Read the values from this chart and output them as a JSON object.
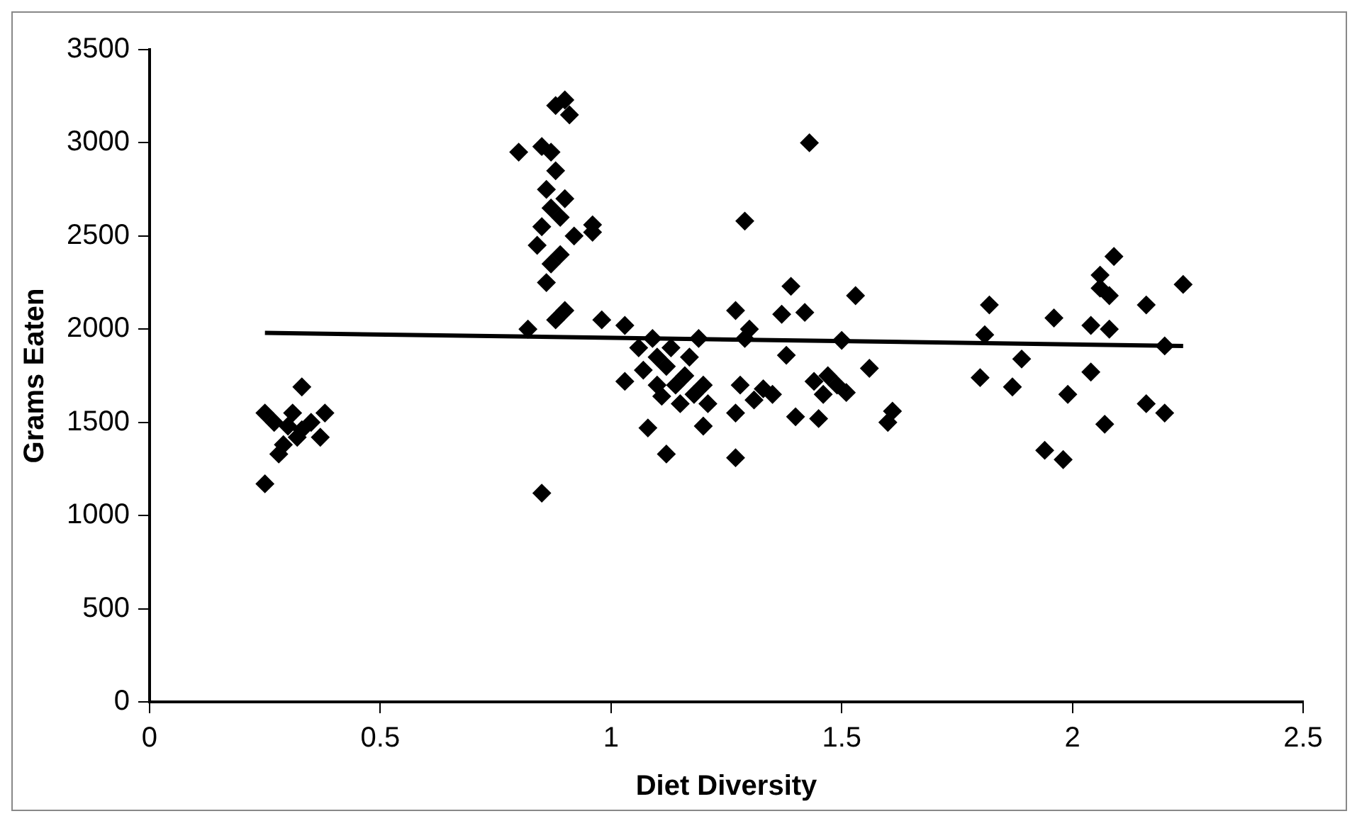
{
  "chart_data": {
    "type": "scatter",
    "xlabel": "Diet Diversity",
    "ylabel": "Grams Eaten",
    "xlim": [
      0,
      2.5
    ],
    "xticks": [
      0,
      0.5,
      1,
      1.5,
      2,
      2.5
    ],
    "ylim": [
      0,
      3500
    ],
    "yticks": [
      0,
      500,
      1000,
      1500,
      2000,
      2500,
      3000,
      3500
    ],
    "grid": false,
    "legend": false,
    "marker": "diamond",
    "series": [
      {
        "type": "scatter",
        "color": "#000000",
        "x": [
          0.25,
          0.25,
          0.27,
          0.28,
          0.29,
          0.3,
          0.31,
          0.32,
          0.33,
          0.33,
          0.35,
          0.37,
          0.38,
          0.8,
          0.82,
          0.84,
          0.85,
          0.85,
          0.86,
          0.86,
          0.87,
          0.87,
          0.87,
          0.88,
          0.88,
          0.88,
          0.89,
          0.89,
          0.9,
          0.9,
          0.9,
          0.91,
          0.92,
          0.85,
          0.96,
          0.96,
          0.98,
          1.03,
          1.03,
          1.06,
          1.07,
          1.08,
          1.09,
          1.1,
          1.1,
          1.11,
          1.12,
          1.12,
          1.13,
          1.14,
          1.15,
          1.16,
          1.17,
          1.18,
          1.19,
          1.2,
          1.2,
          1.21,
          1.27,
          1.27,
          1.27,
          1.28,
          1.29,
          1.29,
          1.3,
          1.31,
          1.33,
          1.35,
          1.37,
          1.38,
          1.39,
          1.4,
          1.42,
          1.43,
          1.44,
          1.45,
          1.46,
          1.47,
          1.49,
          1.5,
          1.51,
          1.53,
          1.56,
          1.6,
          1.61,
          1.82,
          1.81,
          1.8,
          1.89,
          1.87,
          1.96,
          1.94,
          1.98,
          1.99,
          2.04,
          2.08,
          2.04,
          2.07,
          2.09,
          2.06,
          2.06,
          2.08,
          2.16,
          2.24,
          2.2,
          2.16,
          2.2
        ],
        "values": [
          1550,
          1170,
          1500,
          1330,
          1380,
          1480,
          1550,
          1420,
          1690,
          1460,
          1500,
          1420,
          1550,
          2950,
          2000,
          2450,
          2980,
          2550,
          2250,
          2750,
          2950,
          2350,
          2650,
          2850,
          2050,
          3200,
          2600,
          2400,
          3230,
          2100,
          2700,
          3150,
          2500,
          1120,
          2560,
          2520,
          2050,
          2020,
          1720,
          1900,
          1780,
          1470,
          1950,
          1850,
          1700,
          1640,
          1800,
          1330,
          1900,
          1700,
          1600,
          1750,
          1850,
          1650,
          1950,
          1480,
          1700,
          1600,
          2100,
          1310,
          1550,
          1700,
          1950,
          2580,
          2000,
          1620,
          1680,
          1650,
          2080,
          1860,
          2230,
          1530,
          2090,
          3000,
          1720,
          1520,
          1650,
          1750,
          1700,
          1940,
          1660,
          2180,
          1790,
          1500,
          1560,
          2130,
          1970,
          1740,
          1840,
          1690,
          2060,
          1350,
          1300,
          1650,
          2020,
          2000,
          1770,
          1490,
          2390,
          2290,
          2220,
          2180,
          2130,
          2240,
          1910,
          1600,
          1550
        ]
      },
      {
        "type": "line",
        "color": "#000000",
        "marker": "none",
        "line_style": "solid",
        "x": [
          0.25,
          2.24
        ],
        "values": [
          1980,
          1910
        ]
      }
    ]
  }
}
